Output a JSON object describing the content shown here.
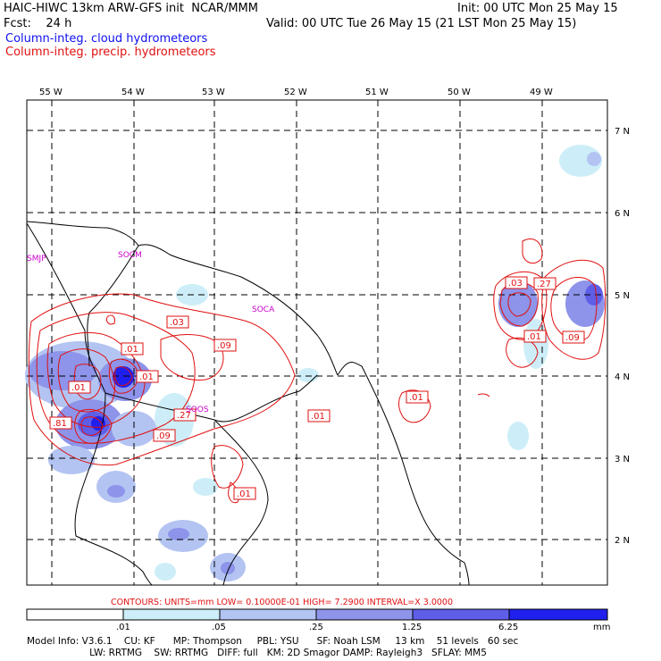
{
  "header": {
    "model_title": "HAIC-HIWC 13km ARW-GFS init  NCAR/MMM",
    "init": "Init: 00 UTC Mon 25 May 15",
    "forecast": "Fcst:    24 h",
    "valid": "Valid: 00 UTC Tue 26 May 15 (21 LST Mon 25 May 15)",
    "field1": "Column-integ. cloud hydrometeors",
    "field2": "Column-integ. precip. hydrometeors"
  },
  "colors": {
    "cloud_field": "#1010ee",
    "precip_field": "#e01010",
    "grid": "#000000",
    "station": "#cc00cc",
    "shade_levels": [
      "#ffffff",
      "#cdeef8",
      "#b3c4f2",
      "#8d94ea",
      "#5e5ee8",
      "#2020ee"
    ]
  },
  "map": {
    "lon_labels": [
      "55 W",
      "54 W",
      "53 W",
      "52 W",
      "51 W",
      "50 W",
      "49 W"
    ],
    "lat_labels": [
      "7 N",
      "6 N",
      "5 N",
      "4 N",
      "3 N",
      "2 N"
    ],
    "stations": [
      "SMJP",
      "SOCM",
      "SOCA",
      "SOOS"
    ],
    "precip_labels": [
      ".03",
      ".01",
      ".09",
      ".01",
      ".01",
      ".27",
      ".09",
      ".81",
      ".01",
      ".01",
      ".01",
      ".03",
      ".27",
      ".01",
      ".09"
    ]
  },
  "legend": {
    "contours_text": "CONTOURS:  UNITS=mm   LOW= 0.10000E-01   HIGH=  7.2900      INTERVAL=X  3.0000",
    "tick_labels": [
      ".01",
      ".05",
      ".25",
      "1.25",
      "6.25"
    ],
    "units": "mm"
  },
  "footer": {
    "line1": "Model Info: V3.6.1    CU: KF      MP: Thompson     PBL: YSU      SF: Noah LSM     13 km    51 levels   60 sec",
    "line2": "                     LW: RRTMG    SW: RRTMG   DIFF: full   KM: 2D Smagor DAMP: Rayleigh3   SFLAY: MM5"
  }
}
